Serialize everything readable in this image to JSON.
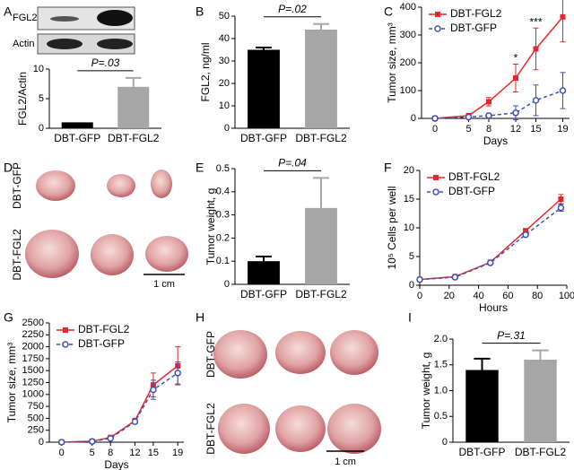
{
  "chart_data": [
    {
      "panel": "A",
      "type": "bar",
      "blot_labels": [
        "FGL2",
        "Actin"
      ],
      "categories": [
        "DBT-GFP",
        "DBT-FGL2"
      ],
      "values": [
        1,
        7
      ],
      "errors": [
        null,
        1.5
      ],
      "colors": [
        "#000000",
        "#a6a6a6"
      ],
      "ylim": [
        0,
        10
      ],
      "yticks": [
        0,
        5,
        10
      ],
      "ylabel": "FGL2/Actin",
      "annotation": "P=.03"
    },
    {
      "panel": "B",
      "type": "bar",
      "categories": [
        "DBT-GFP",
        "DBT-FGL2"
      ],
      "values": [
        35,
        44
      ],
      "errors": [
        1,
        2.5
      ],
      "colors": [
        "#000000",
        "#a6a6a6"
      ],
      "ylim": [
        0,
        50
      ],
      "yticks": [
        0,
        10,
        20,
        30,
        40,
        50
      ],
      "ylabel": "FGL2, ng/ml",
      "annotation": "P=.02"
    },
    {
      "panel": "C",
      "type": "line",
      "x": [
        0,
        5,
        8,
        12,
        15,
        19
      ],
      "series": [
        {
          "name": "DBT-FGL2",
          "color": "#e8262a",
          "marker": "square",
          "dash": false,
          "values": [
            0,
            10,
            60,
            145,
            250,
            365
          ],
          "errors": [
            null,
            null,
            15,
            50,
            75,
            90
          ]
        },
        {
          "name": "DBT-GFP",
          "color": "#3b4fb8",
          "marker": "circle",
          "dash": true,
          "values": [
            0,
            5,
            10,
            20,
            65,
            100
          ],
          "errors": [
            null,
            null,
            null,
            25,
            55,
            65
          ]
        }
      ],
      "xlim": [
        -2,
        20
      ],
      "xticks": [
        0,
        5,
        8,
        12,
        15,
        19
      ],
      "ylim": [
        0,
        400
      ],
      "yticks": [
        0,
        100,
        200,
        300,
        400
      ],
      "xlabel": "Days",
      "ylabel": "Tumor size, mm³",
      "annotations": [
        {
          "x": 12,
          "text": "*"
        },
        {
          "x": 15,
          "text": "***"
        },
        {
          "x": 19,
          "text": "***"
        }
      ],
      "legend": "upper left"
    },
    {
      "panel": "E",
      "type": "bar",
      "categories": [
        "DBT-GFP",
        "DBT-FGL2"
      ],
      "values": [
        0.1,
        0.33
      ],
      "errors": [
        0.02,
        0.13
      ],
      "colors": [
        "#000000",
        "#a6a6a6"
      ],
      "ylim": [
        0,
        0.5
      ],
      "yticks": [
        0,
        0.1,
        0.2,
        0.3,
        0.4,
        0.5
      ],
      "ylabel": "Tumor weight, g",
      "annotation": "P=.04"
    },
    {
      "panel": "F",
      "type": "line",
      "x": [
        0,
        24,
        48,
        72,
        96
      ],
      "series": [
        {
          "name": "DBT-FGL2",
          "color": "#e8262a",
          "marker": "square",
          "dash": false,
          "values": [
            1,
            1.5,
            4,
            9.5,
            15
          ],
          "errors": [
            null,
            null,
            null,
            null,
            0.8
          ]
        },
        {
          "name": "DBT-GFP",
          "color": "#3b4fb8",
          "marker": "circle",
          "dash": true,
          "values": [
            1,
            1.4,
            3.9,
            8.8,
            13.5
          ],
          "errors": [
            null,
            null,
            null,
            null,
            0.6
          ]
        }
      ],
      "xlim": [
        0,
        100
      ],
      "xticks": [
        0,
        20,
        40,
        60,
        80,
        100
      ],
      "ylim": [
        0,
        20
      ],
      "yticks": [
        0,
        5,
        10,
        15,
        20
      ],
      "xlabel": "Hours",
      "ylabel": "10⁵ Cells per well",
      "legend": "upper left"
    },
    {
      "panel": "G",
      "type": "line",
      "x": [
        0,
        5,
        8,
        12,
        15,
        19
      ],
      "series": [
        {
          "name": "DBT-FGL2",
          "color": "#e8262a",
          "marker": "square",
          "dash": false,
          "values": [
            0,
            20,
            100,
            450,
            1200,
            1600
          ],
          "errors": [
            null,
            null,
            null,
            50,
            250,
            400
          ]
        },
        {
          "name": "DBT-GFP",
          "color": "#3b4fb8",
          "marker": "circle",
          "dash": true,
          "values": [
            0,
            15,
            80,
            430,
            1100,
            1450
          ],
          "errors": [
            null,
            null,
            null,
            40,
            200,
            230
          ]
        }
      ],
      "xlim": [
        -2,
        20
      ],
      "xticks": [
        0,
        5,
        8,
        12,
        15,
        19
      ],
      "ylim": [
        0,
        2500
      ],
      "yticks": [
        0,
        250,
        500,
        750,
        1000,
        1250,
        1500,
        1750,
        2000,
        2250,
        2500
      ],
      "xlabel": "Days",
      "ylabel": "Tumor size, mm³",
      "legend": "upper left"
    },
    {
      "panel": "I",
      "type": "bar",
      "categories": [
        "DBT-GFP",
        "DBT-FGL2"
      ],
      "values": [
        1.4,
        1.6
      ],
      "errors": [
        0.22,
        0.18
      ],
      "colors": [
        "#000000",
        "#a6a6a6"
      ],
      "ylim": [
        0,
        2
      ],
      "yticks": [
        0,
        0.5,
        {
          "value": 1,
          "label": "1.0"
        },
        1.5,
        {
          "value": 2,
          "label": "2.0"
        }
      ],
      "ylabel": "Tumor weight, g",
      "annotation": "P=.31"
    }
  ],
  "images": [
    {
      "panel": "D",
      "labels": [
        "DBT-GFP",
        "DBT-FGL2"
      ],
      "scale_bar": "1 cm"
    },
    {
      "panel": "H",
      "labels": [
        "DBT-GFP",
        "DBT-FGL2"
      ],
      "scale_bar": "1 cm"
    }
  ]
}
